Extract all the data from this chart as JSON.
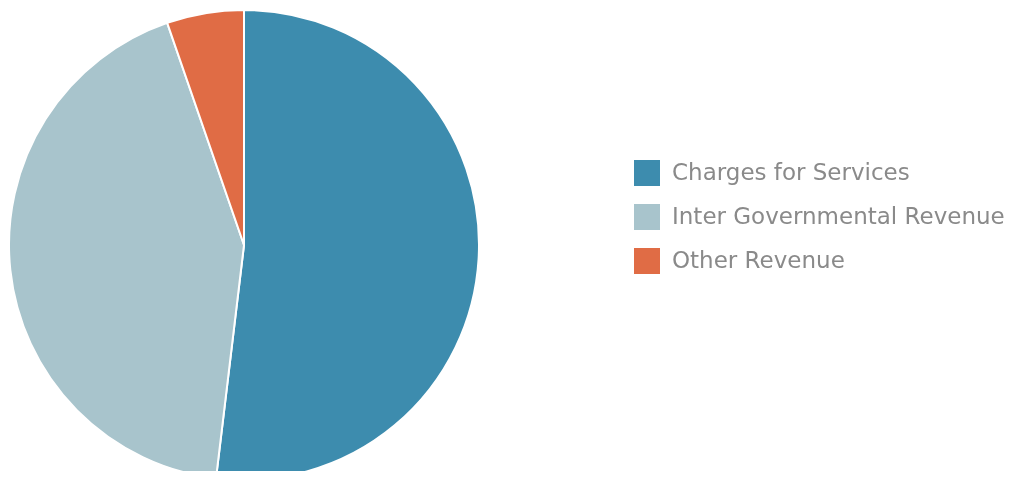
{
  "chart_data": {
    "type": "pie",
    "categories": [
      "Charges for Services",
      "Inter Governmental Revenue",
      "Other Revenue"
    ],
    "values": [
      51.9,
      42.8,
      5.3
    ],
    "colors": [
      "#3d8cae",
      "#a8c4cc",
      "#e06c45"
    ],
    "legend": "right"
  }
}
